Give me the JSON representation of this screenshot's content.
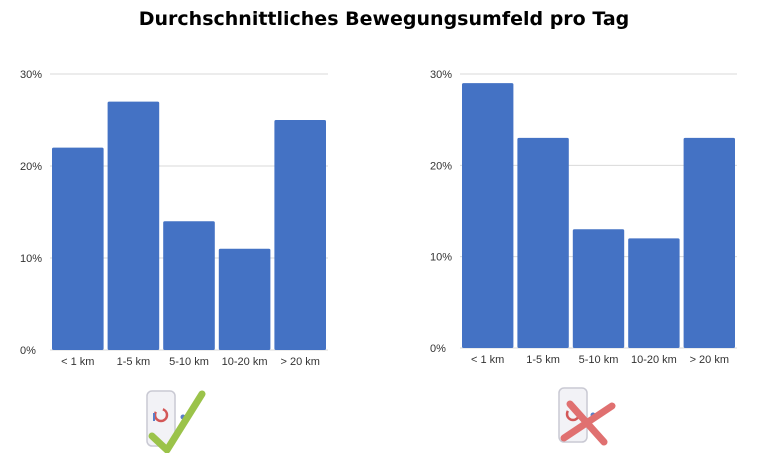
{
  "title": "Durchschnittliches Bewegungsumfeld pro Tag",
  "colors": {
    "bar": "#4472C4",
    "check": "#9BC34A",
    "cross": "#E07070"
  },
  "chart_data": [
    {
      "type": "bar",
      "categories": [
        "< 1 km",
        "1-5 km",
        "5-10 km",
        "10-20 km",
        "> 20 km"
      ],
      "values": [
        22,
        27,
        14,
        11,
        25
      ],
      "yticks": [
        "0%",
        "10%",
        "20%",
        "30%"
      ],
      "ylim": [
        0,
        30
      ],
      "grid": true,
      "badge_icon": "phone-check-icon"
    },
    {
      "type": "bar",
      "categories": [
        "< 1 km",
        "1-5 km",
        "5-10 km",
        "10-20 km",
        "> 20 km"
      ],
      "values": [
        29,
        23,
        13,
        12,
        23
      ],
      "yticks": [
        "0%",
        "10%",
        "20%",
        "30%"
      ],
      "ylim": [
        0,
        30
      ],
      "grid": true,
      "badge_icon": "phone-cross-icon"
    }
  ]
}
